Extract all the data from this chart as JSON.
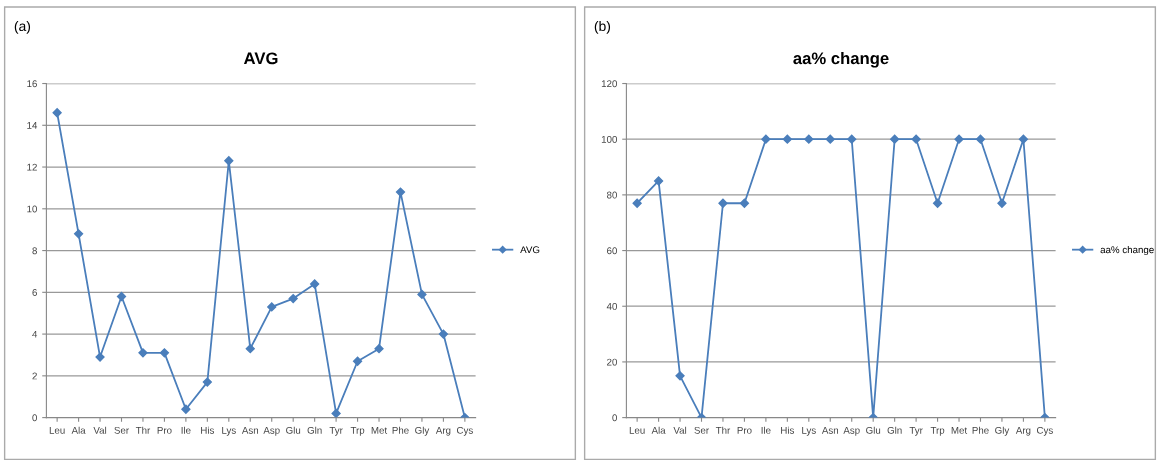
{
  "chart_data": [
    {
      "type": "line",
      "title": "AVG",
      "annotations": [
        "(a)"
      ],
      "categories": [
        "Leu",
        "Ala",
        "Val",
        "Ser",
        "Thr",
        "Pro",
        "Ile",
        "His",
        "Lys",
        "Asn",
        "Asp",
        "Glu",
        "Gln",
        "Tyr",
        "Trp",
        "Met",
        "Phe",
        "Gly",
        "Arg",
        "Cys"
      ],
      "series": [
        {
          "name": "AVG",
          "color": "#4a7ebb",
          "values": [
            14.6,
            8.8,
            2.9,
            5.8,
            3.1,
            3.1,
            0.4,
            1.7,
            12.3,
            3.3,
            5.3,
            5.7,
            6.4,
            0.2,
            2.7,
            3.3,
            10.8,
            5.9,
            4.0,
            0
          ]
        }
      ],
      "ylim": [
        0,
        16
      ],
      "yticks": [
        0,
        2,
        4,
        6,
        8,
        10,
        12,
        14,
        16
      ],
      "grid": "y",
      "legend": "right",
      "marker": "diamond",
      "line_style": "solid"
    },
    {
      "type": "line",
      "title": "aa% change",
      "annotations": [
        "(b)"
      ],
      "categories": [
        "Leu",
        "Ala",
        "Val",
        "Ser",
        "Thr",
        "Pro",
        "Ile",
        "His",
        "Lys",
        "Asn",
        "Asp",
        "Glu",
        "Gln",
        "Tyr",
        "Trp",
        "Met",
        "Phe",
        "Gly",
        "Arg",
        "Cys"
      ],
      "series": [
        {
          "name": "aa% change",
          "color": "#4a7ebb",
          "values": [
            77,
            85,
            15,
            0,
            77,
            77,
            100,
            100,
            100,
            100,
            100,
            0,
            100,
            100,
            77,
            100,
            100,
            77,
            100,
            0
          ]
        }
      ],
      "ylim": [
        0,
        120
      ],
      "yticks": [
        0,
        20,
        40,
        60,
        80,
        100,
        120
      ],
      "grid": "y",
      "legend": "right",
      "marker": "diamond",
      "line_style": "solid"
    }
  ]
}
